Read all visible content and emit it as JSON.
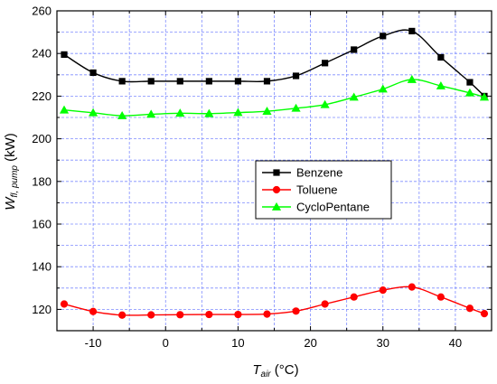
{
  "chart_data": {
    "type": "line",
    "xlabel": {
      "main": "T",
      "sub": "air",
      "rest": " (°C)"
    },
    "ylabel": {
      "main": "W",
      "sub": "fl, pump",
      "rest": " (kW)"
    },
    "xlim": [
      -15,
      45
    ],
    "ylim": [
      110,
      260
    ],
    "xticks": [
      -10,
      0,
      10,
      20,
      30,
      40
    ],
    "yticks": [
      120,
      140,
      160,
      180,
      200,
      220,
      240,
      260
    ],
    "grid": true,
    "legend_position": "center",
    "series": [
      {
        "name": "Benzene",
        "color": "#000000",
        "marker": "square",
        "x": [
          -14,
          -10,
          -6,
          -2,
          2,
          6,
          10,
          14,
          18,
          22,
          26,
          30,
          34,
          38,
          42,
          44
        ],
        "y": [
          239.5,
          231,
          227,
          227,
          227,
          227,
          227,
          227,
          229.5,
          235.5,
          241.8,
          248.2,
          250.5,
          238.2,
          226.5,
          220
        ]
      },
      {
        "name": "Toluene",
        "color": "#ff0000",
        "marker": "circle",
        "x": [
          -14,
          -10,
          -6,
          -2,
          2,
          6,
          10,
          14,
          18,
          22,
          26,
          30,
          34,
          38,
          42,
          44
        ],
        "y": [
          122.5,
          119,
          117.3,
          117.4,
          117.5,
          117.6,
          117.6,
          117.8,
          119.2,
          122.5,
          125.8,
          129,
          130.5,
          125.8,
          120.5,
          118
        ]
      },
      {
        "name": "CycloPentane",
        "color": "#00ff00",
        "marker": "triangle",
        "x": [
          -14,
          -10,
          -6,
          -2,
          2,
          6,
          10,
          14,
          18,
          22,
          26,
          30,
          34,
          38,
          42,
          44
        ],
        "y": [
          213.5,
          212.2,
          210.8,
          211.5,
          212,
          211.8,
          212.3,
          212.9,
          214.3,
          216,
          219.5,
          223.3,
          227.8,
          224.8,
          221.5,
          219.5
        ]
      }
    ]
  }
}
